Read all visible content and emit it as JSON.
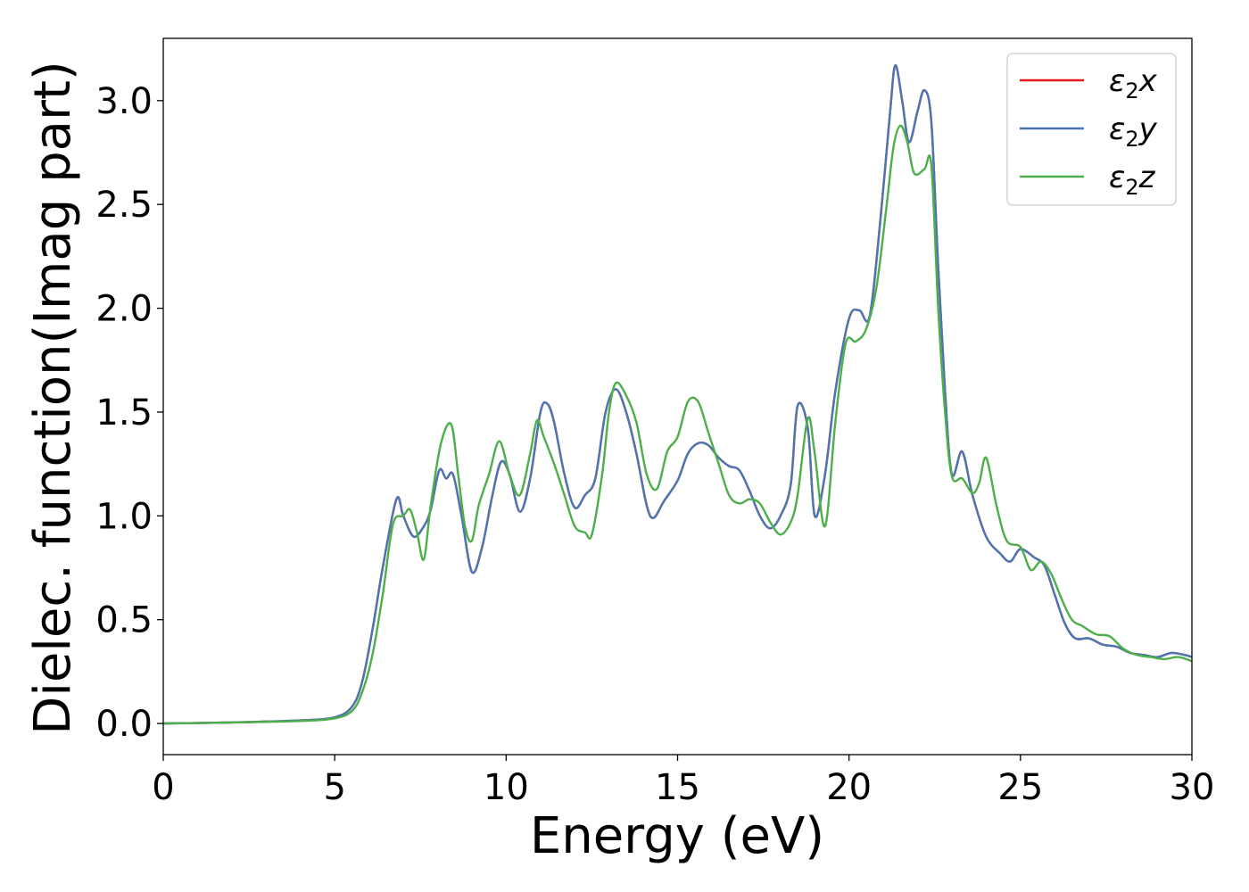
{
  "chart_data": {
    "type": "line",
    "title": "",
    "xlabel": "Energy (eV)",
    "ylabel": "Dielec. function(Imag part)",
    "xlim": [
      0,
      30
    ],
    "ylim": [
      -0.15,
      3.3
    ],
    "xticks": [
      0,
      5,
      10,
      15,
      20,
      25,
      30
    ],
    "xtick_labels": [
      "0",
      "5",
      "10",
      "15",
      "20",
      "25",
      "30"
    ],
    "yticks": [
      0.0,
      0.5,
      1.0,
      1.5,
      2.0,
      2.5,
      3.0
    ],
    "ytick_labels": [
      "0.0",
      "0.5",
      "1.0",
      "1.5",
      "2.0",
      "2.5",
      "3.0"
    ],
    "grid": false,
    "legend_position": "top-right",
    "series": [
      {
        "name": "ε2x",
        "legend_base": "ε",
        "legend_sub": "2",
        "legend_suffix": "x",
        "color": "#e41a1c",
        "x": [
          0,
          2,
          4,
          5,
          5.5,
          5.8,
          6.1,
          6.4,
          6.8,
          7.0,
          7.3,
          7.6,
          7.8,
          8.05,
          8.25,
          8.45,
          8.7,
          9.0,
          9.3,
          9.6,
          9.85,
          10.1,
          10.4,
          10.7,
          11.0,
          11.2,
          11.4,
          11.7,
          12.0,
          12.3,
          12.6,
          12.9,
          13.2,
          13.5,
          13.8,
          14.1,
          14.3,
          14.6,
          15.0,
          15.3,
          15.6,
          15.9,
          16.2,
          16.5,
          16.8,
          17.1,
          17.4,
          17.7,
          18.0,
          18.3,
          18.5,
          18.8,
          19.0,
          19.3,
          19.6,
          20.0,
          20.3,
          20.6,
          20.9,
          21.2,
          21.35,
          21.55,
          21.75,
          22.0,
          22.2,
          22.4,
          22.6,
          22.8,
          23.0,
          23.3,
          23.6,
          24.0,
          24.4,
          24.7,
          25.0,
          25.4,
          25.7,
          26.0,
          26.3,
          26.6,
          27.0,
          27.4,
          27.8,
          28.2,
          28.6,
          29.0,
          29.4,
          29.8,
          30.0
        ],
        "y": [
          0.0,
          0.005,
          0.015,
          0.03,
          0.08,
          0.2,
          0.45,
          0.75,
          1.08,
          1.0,
          0.9,
          0.95,
          1.03,
          1.22,
          1.18,
          1.2,
          1.0,
          0.73,
          0.85,
          1.1,
          1.26,
          1.2,
          1.02,
          1.18,
          1.5,
          1.54,
          1.45,
          1.2,
          1.04,
          1.1,
          1.18,
          1.5,
          1.61,
          1.5,
          1.3,
          1.05,
          0.99,
          1.07,
          1.17,
          1.3,
          1.35,
          1.34,
          1.28,
          1.24,
          1.22,
          1.12,
          1.0,
          0.94,
          1.0,
          1.15,
          1.53,
          1.42,
          1.0,
          1.2,
          1.6,
          1.95,
          1.99,
          1.96,
          2.4,
          2.95,
          3.17,
          3.0,
          2.8,
          2.95,
          3.05,
          2.9,
          2.2,
          1.6,
          1.2,
          1.31,
          1.1,
          0.9,
          0.82,
          0.78,
          0.84,
          0.8,
          0.76,
          0.62,
          0.48,
          0.41,
          0.41,
          0.38,
          0.37,
          0.34,
          0.33,
          0.32,
          0.34,
          0.33,
          0.32
        ]
      },
      {
        "name": "ε2y",
        "legend_base": "ε",
        "legend_sub": "2",
        "legend_suffix": "y",
        "color": "#4a77b4",
        "x": [
          0,
          2,
          4,
          5,
          5.5,
          5.8,
          6.1,
          6.4,
          6.8,
          7.0,
          7.3,
          7.6,
          7.8,
          8.05,
          8.25,
          8.45,
          8.7,
          9.0,
          9.3,
          9.6,
          9.85,
          10.1,
          10.4,
          10.7,
          11.0,
          11.2,
          11.4,
          11.7,
          12.0,
          12.3,
          12.6,
          12.9,
          13.2,
          13.5,
          13.8,
          14.1,
          14.3,
          14.6,
          15.0,
          15.3,
          15.6,
          15.9,
          16.2,
          16.5,
          16.8,
          17.1,
          17.4,
          17.7,
          18.0,
          18.3,
          18.5,
          18.8,
          19.0,
          19.3,
          19.6,
          20.0,
          20.3,
          20.6,
          20.9,
          21.2,
          21.35,
          21.55,
          21.75,
          22.0,
          22.2,
          22.4,
          22.6,
          22.8,
          23.0,
          23.3,
          23.6,
          24.0,
          24.4,
          24.7,
          25.0,
          25.4,
          25.7,
          26.0,
          26.3,
          26.6,
          27.0,
          27.4,
          27.8,
          28.2,
          28.6,
          29.0,
          29.4,
          29.8,
          30.0
        ],
        "y": [
          0.0,
          0.005,
          0.015,
          0.03,
          0.08,
          0.2,
          0.45,
          0.75,
          1.08,
          1.0,
          0.9,
          0.95,
          1.03,
          1.22,
          1.18,
          1.2,
          1.0,
          0.73,
          0.85,
          1.1,
          1.26,
          1.2,
          1.02,
          1.18,
          1.5,
          1.54,
          1.45,
          1.2,
          1.04,
          1.1,
          1.18,
          1.5,
          1.61,
          1.5,
          1.3,
          1.05,
          0.99,
          1.07,
          1.17,
          1.3,
          1.35,
          1.34,
          1.28,
          1.24,
          1.22,
          1.12,
          1.0,
          0.94,
          1.0,
          1.15,
          1.53,
          1.42,
          1.0,
          1.2,
          1.6,
          1.95,
          1.99,
          1.96,
          2.4,
          2.95,
          3.17,
          3.0,
          2.8,
          2.95,
          3.05,
          2.9,
          2.2,
          1.6,
          1.2,
          1.31,
          1.1,
          0.9,
          0.82,
          0.78,
          0.84,
          0.8,
          0.76,
          0.62,
          0.48,
          0.41,
          0.41,
          0.38,
          0.37,
          0.34,
          0.33,
          0.32,
          0.34,
          0.33,
          0.32
        ]
      },
      {
        "name": "ε2z",
        "legend_base": "ε",
        "legend_sub": "2",
        "legend_suffix": "z",
        "color": "#4daf4a",
        "x": [
          0,
          2,
          4,
          5,
          5.5,
          5.8,
          6.1,
          6.4,
          6.7,
          7.0,
          7.2,
          7.4,
          7.6,
          7.8,
          8.1,
          8.4,
          8.6,
          8.8,
          9.0,
          9.2,
          9.5,
          9.8,
          10.1,
          10.4,
          10.7,
          10.9,
          11.1,
          11.4,
          11.7,
          12.0,
          12.3,
          12.5,
          12.8,
          13.0,
          13.2,
          13.5,
          13.8,
          14.1,
          14.4,
          14.7,
          15.0,
          15.3,
          15.6,
          15.9,
          16.2,
          16.5,
          16.8,
          17.1,
          17.4,
          17.7,
          18.0,
          18.3,
          18.5,
          18.8,
          19.0,
          19.3,
          19.6,
          19.9,
          20.2,
          20.5,
          20.8,
          21.1,
          21.3,
          21.5,
          21.7,
          21.9,
          22.2,
          22.4,
          22.6,
          22.8,
          23.0,
          23.3,
          23.6,
          23.8,
          24.0,
          24.3,
          24.6,
          25.0,
          25.3,
          25.6,
          25.9,
          26.2,
          26.5,
          26.8,
          27.2,
          27.6,
          28.0,
          28.4,
          28.8,
          29.2,
          29.6,
          30.0
        ],
        "y": [
          0.0,
          0.005,
          0.012,
          0.025,
          0.06,
          0.15,
          0.33,
          0.62,
          0.96,
          1.0,
          1.03,
          0.92,
          0.79,
          1.05,
          1.35,
          1.44,
          1.2,
          0.95,
          0.88,
          1.05,
          1.2,
          1.36,
          1.2,
          1.1,
          1.3,
          1.46,
          1.38,
          1.25,
          1.1,
          0.95,
          0.92,
          0.91,
          1.2,
          1.5,
          1.64,
          1.58,
          1.45,
          1.2,
          1.13,
          1.31,
          1.38,
          1.55,
          1.55,
          1.4,
          1.25,
          1.1,
          1.06,
          1.08,
          1.06,
          0.97,
          0.91,
          0.97,
          1.1,
          1.47,
          1.3,
          0.95,
          1.45,
          1.83,
          1.84,
          1.9,
          2.1,
          2.5,
          2.78,
          2.88,
          2.8,
          2.65,
          2.67,
          2.69,
          2.0,
          1.5,
          1.19,
          1.18,
          1.11,
          1.16,
          1.28,
          1.05,
          0.88,
          0.85,
          0.74,
          0.78,
          0.72,
          0.6,
          0.5,
          0.47,
          0.43,
          0.42,
          0.36,
          0.33,
          0.32,
          0.31,
          0.32,
          0.3
        ]
      }
    ]
  }
}
